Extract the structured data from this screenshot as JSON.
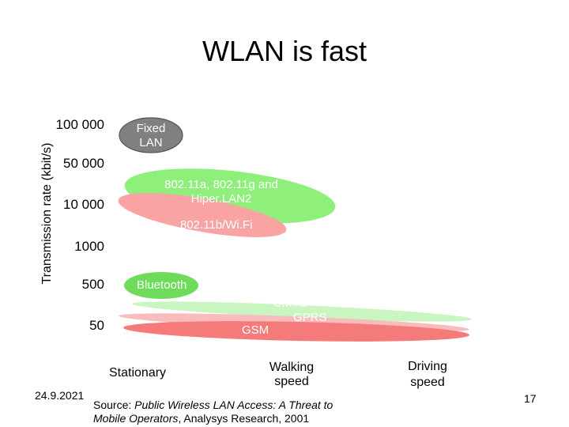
{
  "title": "WLAN is fast",
  "y_axis": {
    "label": "Transmission rate (kbit/s)",
    "ticks": [
      "100 000",
      "50 000",
      "10 000",
      "1000",
      "500",
      "50"
    ]
  },
  "x_axis": {
    "stationary": "Stationary",
    "walking_l1": "Walking",
    "walking_l2": "speed",
    "driving_l1": "Driving",
    "driving_l2": "speed"
  },
  "technologies": {
    "fixed_lan_l1": "Fixed",
    "fixed_lan_l2": "LAN",
    "wlan_a_g_l1": "802.11a, 802.11g and",
    "wlan_a_g_l2": "Hiper.LAN2",
    "wifi": "802.11b/Wi.Fi",
    "bluetooth": "Bluetooth",
    "umts": "UMTS",
    "gprs": "GPRS",
    "gsm": "GSM"
  },
  "colors": {
    "fixed_lan": "#808080",
    "wlan_a_g": "#8ef07a",
    "wifi": "#f9a3a3",
    "bluetooth": "#6edc5a",
    "umts": "#c9f5c0",
    "gprs": "#f8bcbc",
    "gsm": "#f57a7a"
  },
  "footer": {
    "date": "24.9.2021",
    "source_prefix": "Source: ",
    "source_title_l1": "Public Wireless LAN Access: A Threat to",
    "source_title_l2": "Mobile Operators",
    "source_suffix": ", Analysys Research, 2001",
    "page": "17"
  }
}
